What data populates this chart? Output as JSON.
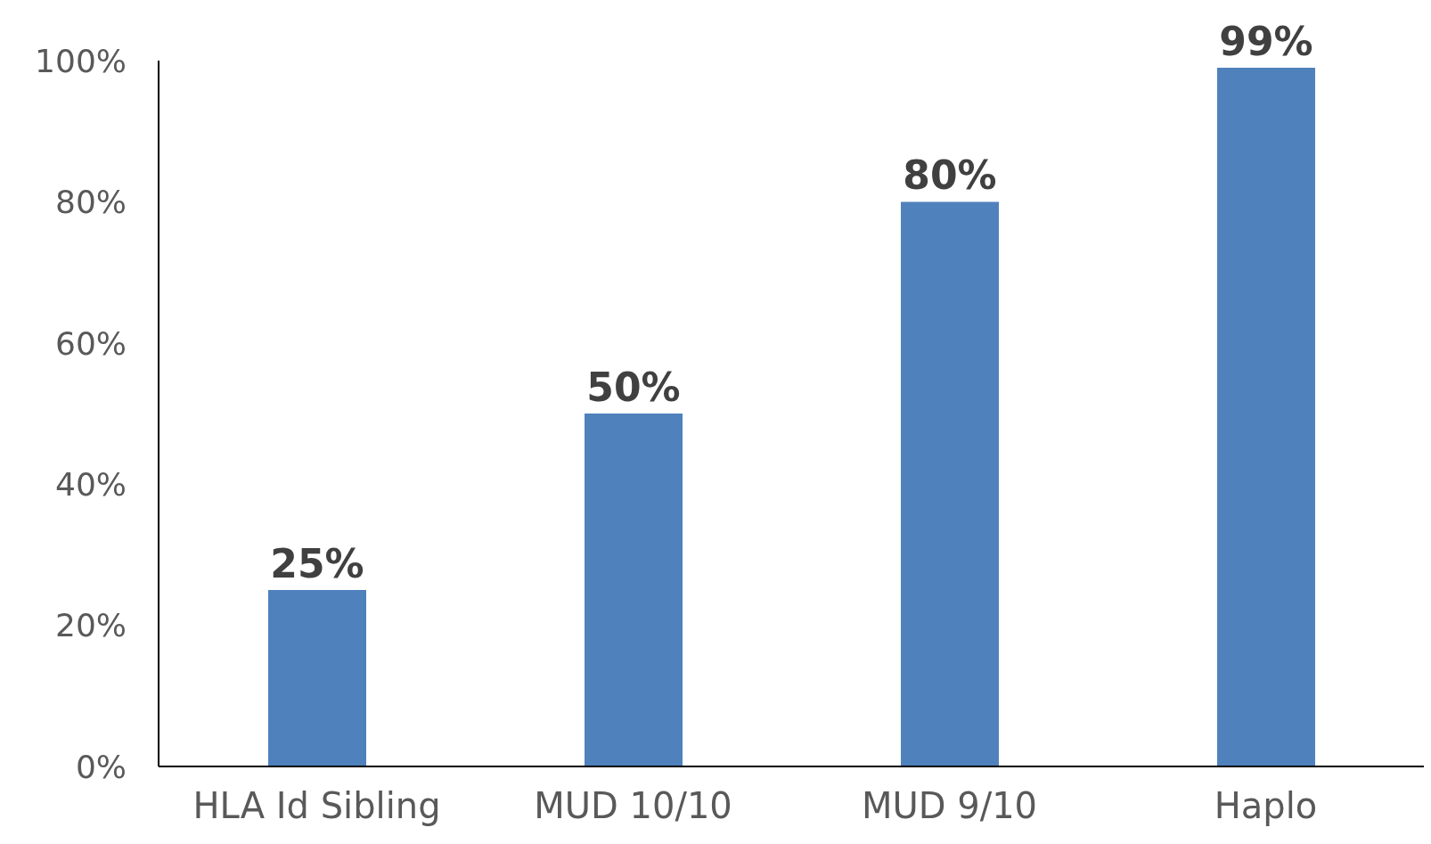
{
  "chart_data": {
    "type": "bar",
    "categories": [
      "HLA Id Sibling",
      "MUD 10/10",
      "MUD 9/10",
      "Haplo"
    ],
    "values": [
      25,
      50,
      80,
      99
    ],
    "value_labels": [
      "25%",
      "50%",
      "80%",
      "99%"
    ],
    "color": "#4f81bd",
    "ylim": [
      0,
      100
    ],
    "yticks": [
      {
        "value": 0,
        "label": "0%"
      },
      {
        "value": 20,
        "label": "20%"
      },
      {
        "value": 40,
        "label": "40%"
      },
      {
        "value": 60,
        "label": "60%"
      },
      {
        "value": 80,
        "label": "80%"
      },
      {
        "value": 100,
        "label": "100%"
      }
    ],
    "grid": false,
    "legend": false
  }
}
